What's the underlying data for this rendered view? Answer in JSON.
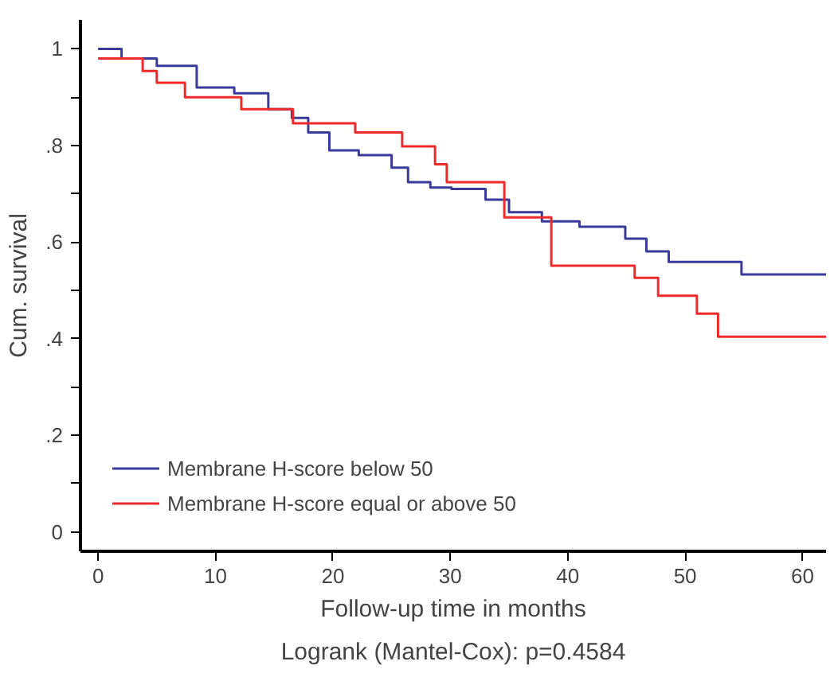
{
  "chart_data": {
    "type": "step",
    "xlabel": "Follow-up time in months",
    "ylabel": "Cum. survival",
    "annotations": [
      "Logrank (Mantel-Cox): p=0.4584"
    ],
    "xlim": [
      -1.5,
      62
    ],
    "ylim": [
      -0.04,
      1.06
    ],
    "xticks": [
      0,
      10,
      20,
      30,
      40,
      50,
      60
    ],
    "yticks": [
      {
        "value": 0,
        "label": "0"
      },
      {
        "value": 0.1,
        "label": null
      },
      {
        "value": 0.2,
        "label": ".2"
      },
      {
        "value": 0.3,
        "label": null
      },
      {
        "value": 0.4,
        "label": ".4"
      },
      {
        "value": 0.5,
        "label": null
      },
      {
        "value": 0.6,
        "label": ".6"
      },
      {
        "value": 0.7,
        "label": null
      },
      {
        "value": 0.8,
        "label": ".8"
      },
      {
        "value": 0.9,
        "label": null
      },
      {
        "value": 1,
        "label": "1"
      }
    ],
    "grid": false,
    "legend": "bottom left",
    "series": [
      {
        "name": "Membrane H-score below 50",
        "color": "#3a3a9a",
        "x": [
          0,
          2,
          5,
          8.4,
          11.6,
          14.5,
          16.5,
          17.9,
          19.7,
          22.2,
          25,
          26.4,
          28.3,
          30.1,
          33,
          35,
          37.8,
          41,
          44.9,
          46.7,
          48.6,
          54.8,
          62
        ],
        "values": [
          1.0,
          0.98,
          0.965,
          0.92,
          0.908,
          0.875,
          0.857,
          0.827,
          0.79,
          0.78,
          0.754,
          0.724,
          0.713,
          0.71,
          0.688,
          0.662,
          0.643,
          0.632,
          0.607,
          0.581,
          0.559,
          0.533,
          0.533
        ]
      },
      {
        "name": "Membrane H-score equal or above 50",
        "color": "#ee2a2a",
        "x": [
          0,
          3.8,
          5,
          7.4,
          12.2,
          16.6,
          21.9,
          25.9,
          28.7,
          29.7,
          34.6,
          38.6,
          45.7,
          47.7,
          51,
          52.8,
          62
        ],
        "values": [
          0.98,
          0.954,
          0.93,
          0.9,
          0.875,
          0.846,
          0.827,
          0.798,
          0.761,
          0.724,
          0.651,
          0.551,
          0.526,
          0.489,
          0.452,
          0.404,
          0.404
        ]
      }
    ]
  }
}
